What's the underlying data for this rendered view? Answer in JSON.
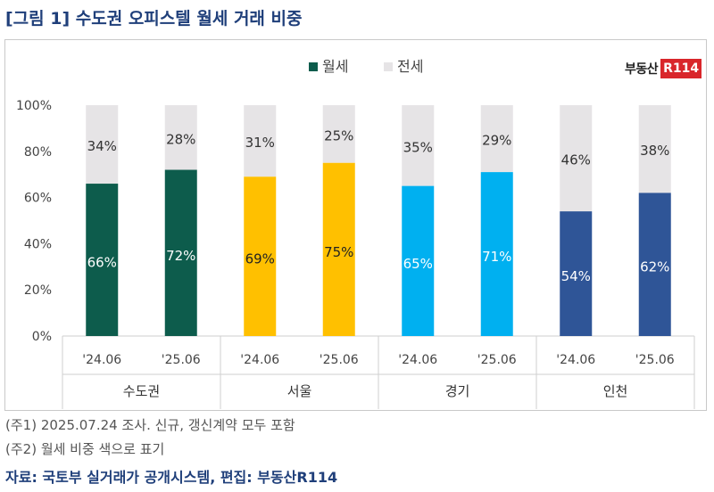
{
  "title": "[그림 1] 수도권 오피스텔 월세 거래 비중",
  "logo": {
    "text": "부동산",
    "box": "R114"
  },
  "notes": [
    "(주1) 2025.07.24 조사. 신규, 갱신계약 모두 포함",
    "(주2) 월세 비중 색으로 표기"
  ],
  "source": "자료: 국토부 실거래가 공개시스템, 편집: 부동산R114",
  "chart_data": {
    "type": "bar",
    "stacked": true,
    "yticks": [
      "0%",
      "20%",
      "40%",
      "60%",
      "80%",
      "100%"
    ],
    "ylim": [
      0,
      100
    ],
    "legend_position": "top",
    "series": [
      {
        "name": "월세",
        "values": [
          66,
          72,
          69,
          75,
          65,
          71,
          54,
          62
        ]
      },
      {
        "name": "전세",
        "values": [
          34,
          28,
          31,
          25,
          35,
          29,
          46,
          38
        ]
      }
    ],
    "categories": [
      "'24.06",
      "'25.06",
      "'24.06",
      "'25.06",
      "'24.06",
      "'25.06",
      "'24.06",
      "'25.06"
    ],
    "groups": [
      {
        "label": "수도권",
        "color": "#0d5c4c"
      },
      {
        "label": "서울",
        "color": "#ffc000"
      },
      {
        "label": "경기",
        "color": "#00b0f0"
      },
      {
        "label": "인천",
        "color": "#2f5597"
      }
    ],
    "legend_colors": {
      "월세": "#0d5c4c",
      "전세": "#e6e4e6"
    },
    "grid": false
  }
}
